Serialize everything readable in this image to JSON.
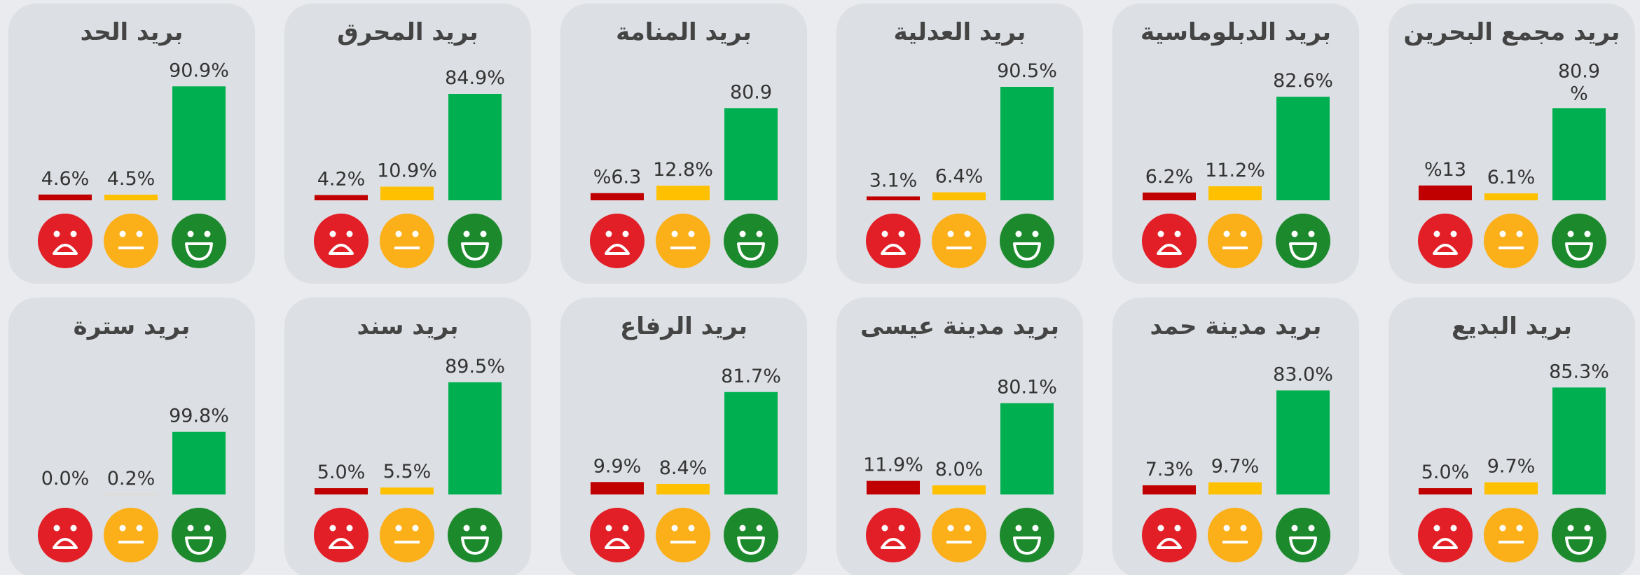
{
  "chart_data": [
    {
      "type": "bar",
      "title": "بريد الحد",
      "categories": [
        null,
        null,
        null
      ],
      "values": [
        4.6,
        4.5,
        90.9
      ],
      "value_labels": [
        "4.6%",
        "4.5%",
        "90.9%"
      ],
      "colors": [
        "#c00000",
        "#ffc000",
        "#00b050"
      ],
      "ylim": [
        0,
        100
      ]
    },
    {
      "type": "bar",
      "title": "بريد المحرق",
      "categories": [
        null,
        null,
        null
      ],
      "values": [
        4.2,
        10.9,
        84.9
      ],
      "value_labels": [
        "4.2%",
        "10.9%",
        "84.9%"
      ],
      "colors": [
        "#c00000",
        "#ffc000",
        "#00b050"
      ],
      "ylim": [
        0,
        100
      ]
    },
    {
      "type": "bar",
      "title": "بريد المنامة",
      "categories": [
        null,
        null,
        null
      ],
      "values": [
        6.3,
        12.8,
        80.9
      ],
      "value_labels": [
        "%6.3",
        "12.8%",
        "80.9"
      ],
      "colors": [
        "#c00000",
        "#ffc000",
        "#00b050"
      ],
      "ylim": [
        0,
        110
      ]
    },
    {
      "type": "bar",
      "title": "بريد العدلية",
      "categories": [
        null,
        null,
        null
      ],
      "values": [
        3.1,
        6.4,
        90.5
      ],
      "value_labels": [
        "3.1%",
        "6.4%",
        "90.5%"
      ],
      "colors": [
        "#c00000",
        "#ffc000",
        "#00b050"
      ],
      "ylim": [
        0,
        100
      ]
    },
    {
      "type": "bar",
      "title": "بريد الدبلوماسية",
      "categories": [
        null,
        null,
        null
      ],
      "values": [
        6.2,
        11.2,
        82.6
      ],
      "value_labels": [
        "6.2%",
        "11.2%",
        "82.6%"
      ],
      "colors": [
        "#c00000",
        "#ffc000",
        "#00b050"
      ],
      "ylim": [
        0,
        100
      ]
    },
    {
      "type": "bar",
      "title": "بريد مجمع البحرين",
      "categories": [
        null,
        null,
        null
      ],
      "values": [
        13,
        6.1,
        80.9
      ],
      "value_labels": [
        "%13",
        "6.1%",
        "80.9\n%"
      ],
      "colors": [
        "#c00000",
        "#ffc000",
        "#00b050"
      ],
      "ylim": [
        0,
        110
      ]
    },
    {
      "type": "bar",
      "title": "بريد سترة",
      "categories": [
        null,
        null,
        null
      ],
      "values": [
        0.0,
        0.2,
        99.8
      ],
      "value_labels": [
        "0.0%",
        "0.2%",
        "99.8%"
      ],
      "colors": [
        "#c00000",
        "#ffc000",
        "#00b050"
      ],
      "ylim": [
        0,
        200
      ]
    },
    {
      "type": "bar",
      "title": "بريد سند",
      "categories": [
        null,
        null,
        null
      ],
      "values": [
        5.0,
        5.5,
        89.5
      ],
      "value_labels": [
        "5.0%",
        "5.5%",
        "89.5%"
      ],
      "colors": [
        "#c00000",
        "#ffc000",
        "#00b050"
      ],
      "ylim": [
        0,
        100
      ]
    },
    {
      "type": "bar",
      "title": "بريد الرفاع",
      "categories": [
        null,
        null,
        null
      ],
      "values": [
        9.9,
        8.4,
        81.7
      ],
      "value_labels": [
        "9.9%",
        "8.4%",
        "81.7%"
      ],
      "colors": [
        "#c00000",
        "#ffc000",
        "#00b050"
      ],
      "ylim": [
        0,
        100
      ]
    },
    {
      "type": "bar",
      "title": "بريد مدينة عيسى",
      "categories": [
        null,
        null,
        null
      ],
      "values": [
        11.9,
        8.0,
        80.1
      ],
      "value_labels": [
        "11.9%",
        "8.0%",
        "80.1%"
      ],
      "colors": [
        "#c00000",
        "#ffc000",
        "#00b050"
      ],
      "ylim": [
        0,
        110
      ]
    },
    {
      "type": "bar",
      "title": "بريد مدينة حمد",
      "categories": [
        null,
        null,
        null
      ],
      "values": [
        7.3,
        9.7,
        83.0
      ],
      "value_labels": [
        "7.3%",
        "9.7%",
        "83.0%"
      ],
      "colors": [
        "#c00000",
        "#ffc000",
        "#00b050"
      ],
      "ylim": [
        0,
        100
      ]
    },
    {
      "type": "bar",
      "title": "بريد البديع",
      "categories": [
        null,
        null,
        null
      ],
      "values": [
        5.0,
        9.7,
        85.3
      ],
      "value_labels": [
        "5.0%",
        "9.7%",
        "85.3%"
      ],
      "colors": [
        "#c00000",
        "#ffc000",
        "#00b050"
      ],
      "ylim": [
        0,
        100
      ]
    }
  ]
}
